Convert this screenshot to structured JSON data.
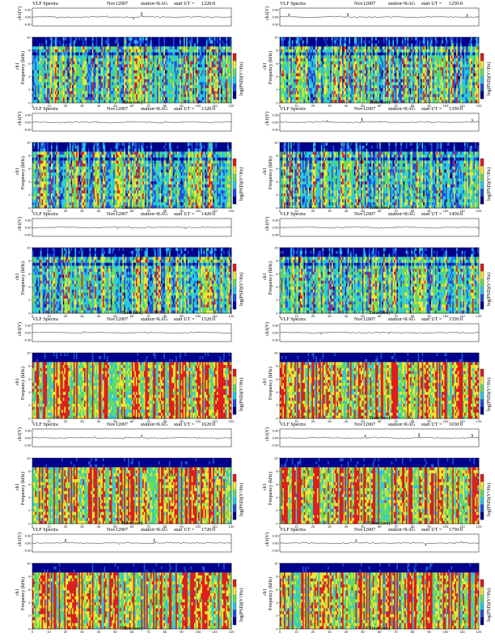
{
  "common": {
    "title": "VLF Spectra",
    "date": "Nov12007",
    "station": "station=KAG",
    "start_label": "start  UT =",
    "ch_label": "ch1(V)",
    "ylabel_ch": "ch1",
    "ylabel": "Frequency  (kHz)",
    "xlabel": "Time  (sec)",
    "cbar_label": "log(PSD)(V²/Hz)",
    "colors": {
      "cold": "#00008b",
      "blue": "#1e50dc",
      "cyan": "#28c8e6",
      "green": "#64dc5a",
      "yellow": "#f0e632",
      "red": "#dc1e1e"
    }
  },
  "chart_data": [
    {
      "type": "heatmap",
      "start_time": "1220:0",
      "xlim": [
        0,
        120
      ],
      "ylim": [
        0,
        10
      ],
      "ch_ylim": [
        -0.3,
        0.3
      ],
      "xticks": [
        0,
        10,
        20,
        30,
        40,
        50,
        60,
        70,
        80,
        90,
        100,
        110,
        120
      ],
      "yticks": [
        0,
        2,
        4,
        6,
        8,
        10
      ],
      "ch_ticks": [
        "0.30",
        "0.00",
        "-0.30"
      ]
    },
    {
      "type": "heatmap",
      "start_time": "1250:0",
      "xlim": [
        0,
        120
      ],
      "ylim": [
        0,
        10
      ],
      "ch_ylim": [
        -0.3,
        0.3
      ],
      "xticks": [
        0,
        10,
        20,
        30,
        40,
        50,
        60,
        70,
        80,
        90,
        100,
        110,
        120
      ],
      "yticks": [
        0,
        2,
        4,
        6,
        8,
        10
      ],
      "ch_ticks": [
        "0.30",
        "0.00",
        "-0.30"
      ]
    },
    {
      "type": "heatmap",
      "start_time": "1320:0",
      "xlim": [
        0,
        120
      ],
      "ylim": [
        0,
        10
      ],
      "ch_ylim": [
        -0.3,
        0.3
      ],
      "xticks": [
        0,
        10,
        20,
        30,
        40,
        50,
        60,
        70,
        80,
        90,
        100,
        110,
        120
      ],
      "yticks": [
        0,
        2,
        4,
        6,
        8,
        10
      ],
      "ch_ticks": [
        "0.30",
        "0.00",
        "-0.30"
      ]
    },
    {
      "type": "heatmap",
      "start_time": "1350:0",
      "xlim": [
        0,
        120
      ],
      "ylim": [
        0,
        10
      ],
      "ch_ylim": [
        -0.3,
        0.3
      ],
      "xticks": [
        0,
        10,
        20,
        30,
        40,
        50,
        60,
        70,
        80,
        90,
        100,
        110,
        120
      ],
      "yticks": [
        0,
        2,
        4,
        6,
        8,
        10
      ],
      "ch_ticks": [
        "0.30",
        "0.00",
        "-0.30"
      ]
    },
    {
      "type": "heatmap",
      "start_time": "1420:0",
      "xlim": [
        0,
        120
      ],
      "ylim": [
        0,
        10
      ],
      "ch_ylim": [
        -0.3,
        0.3
      ],
      "xticks": [
        0,
        10,
        20,
        30,
        40,
        50,
        60,
        70,
        80,
        90,
        100,
        110,
        120
      ],
      "yticks": [
        0,
        2,
        4,
        6,
        8,
        10
      ],
      "ch_ticks": [
        "0.30",
        "0.00",
        "-0.30"
      ]
    },
    {
      "type": "heatmap",
      "start_time": "1450:0",
      "xlim": [
        0,
        120
      ],
      "ylim": [
        0,
        10
      ],
      "ch_ylim": [
        -0.3,
        0.3
      ],
      "xticks": [
        0,
        10,
        20,
        30,
        40,
        50,
        60,
        70,
        80,
        90,
        100,
        110,
        120
      ],
      "yticks": [
        0,
        2,
        4,
        6,
        8,
        10
      ],
      "ch_ticks": [
        "0.30",
        "0.00",
        "-0.30"
      ]
    },
    {
      "type": "heatmap",
      "start_time": "1520:0",
      "xlim": [
        0,
        120
      ],
      "ylim": [
        0,
        10
      ],
      "ch_ylim": [
        -0.3,
        0.3
      ],
      "xticks": [
        0,
        10,
        20,
        30,
        40,
        50,
        60,
        70,
        80,
        90,
        100,
        110,
        120
      ],
      "yticks": [
        0,
        2,
        4,
        6,
        8,
        10
      ],
      "ch_ticks": [
        "0.30",
        "0.00",
        "-0.30"
      ]
    },
    {
      "type": "heatmap",
      "start_time": "1550:0",
      "xlim": [
        0,
        120
      ],
      "ylim": [
        0,
        10
      ],
      "ch_ylim": [
        -0.3,
        0.3
      ],
      "xticks": [
        0,
        10,
        20,
        30,
        40,
        50,
        60,
        70,
        80,
        90,
        100,
        110,
        120
      ],
      "yticks": [
        0,
        2,
        4,
        6,
        8,
        10
      ],
      "ch_ticks": [
        "0.30",
        "0.00",
        "-0.30"
      ]
    },
    {
      "type": "heatmap",
      "start_time": "1620:0",
      "xlim": [
        0,
        120
      ],
      "ylim": [
        0,
        10
      ],
      "ch_ylim": [
        -0.3,
        0.3
      ],
      "xticks": [
        0,
        10,
        20,
        30,
        40,
        50,
        60,
        70,
        80,
        90,
        100,
        110,
        120
      ],
      "yticks": [
        0,
        2,
        4,
        6,
        8,
        10
      ],
      "ch_ticks": [
        "0.30",
        "0.00",
        "-0.30"
      ]
    },
    {
      "type": "heatmap",
      "start_time": "1650:0",
      "xlim": [
        0,
        120
      ],
      "ylim": [
        0,
        10
      ],
      "ch_ylim": [
        -0.3,
        0.3
      ],
      "xticks": [
        0,
        10,
        20,
        30,
        40,
        50,
        60,
        70,
        80,
        90,
        100,
        110,
        120
      ],
      "yticks": [
        0,
        2,
        4,
        6,
        8,
        10
      ],
      "ch_ticks": [
        "0.30",
        "0.00",
        "-0.30"
      ]
    },
    {
      "type": "heatmap",
      "start_time": "1720:0",
      "xlim": [
        0,
        120
      ],
      "ylim": [
        0,
        10
      ],
      "ch_ylim": [
        -0.3,
        0.3
      ],
      "xticks": [
        0,
        10,
        20,
        30,
        40,
        50,
        60,
        70,
        80,
        90,
        100,
        110,
        120
      ],
      "yticks": [
        0,
        2,
        4,
        6,
        8,
        10
      ],
      "ch_ticks": [
        "0.30",
        "0.00",
        "-0.30"
      ]
    },
    {
      "type": "heatmap",
      "start_time": "1750:0",
      "xlim": [
        0,
        120
      ],
      "ylim": [
        0,
        10
      ],
      "ch_ylim": [
        -0.3,
        0.3
      ],
      "xticks": [
        0,
        10,
        20,
        30,
        40,
        50,
        60,
        70,
        80,
        90,
        100,
        110,
        120
      ],
      "yticks": [
        0,
        2,
        4,
        6,
        8,
        10
      ],
      "ch_ticks": [
        "0.30",
        "0.00",
        "-0.30"
      ]
    }
  ]
}
